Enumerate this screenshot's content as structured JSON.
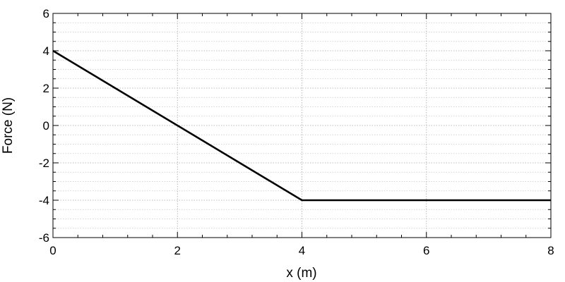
{
  "chart_data": {
    "type": "line",
    "title": "",
    "xlabel": "x (m)",
    "ylabel": "Force (N)",
    "xlim": [
      0,
      8
    ],
    "ylim": [
      -6,
      6
    ],
    "x_ticks": [
      0,
      2,
      4,
      6,
      8
    ],
    "y_ticks": [
      -6,
      -4,
      -2,
      0,
      2,
      4,
      6
    ],
    "x_tick_labels": [
      "0",
      "2",
      "4",
      "6",
      "8"
    ],
    "y_tick_labels": [
      "-6",
      "-4",
      "-2",
      "0",
      "2",
      "4",
      "6"
    ],
    "grid": true,
    "legend": "none",
    "series": [
      {
        "x": [
          0,
          4,
          8
        ],
        "y": [
          4,
          -4,
          -4
        ],
        "color": "#000000"
      }
    ]
  }
}
